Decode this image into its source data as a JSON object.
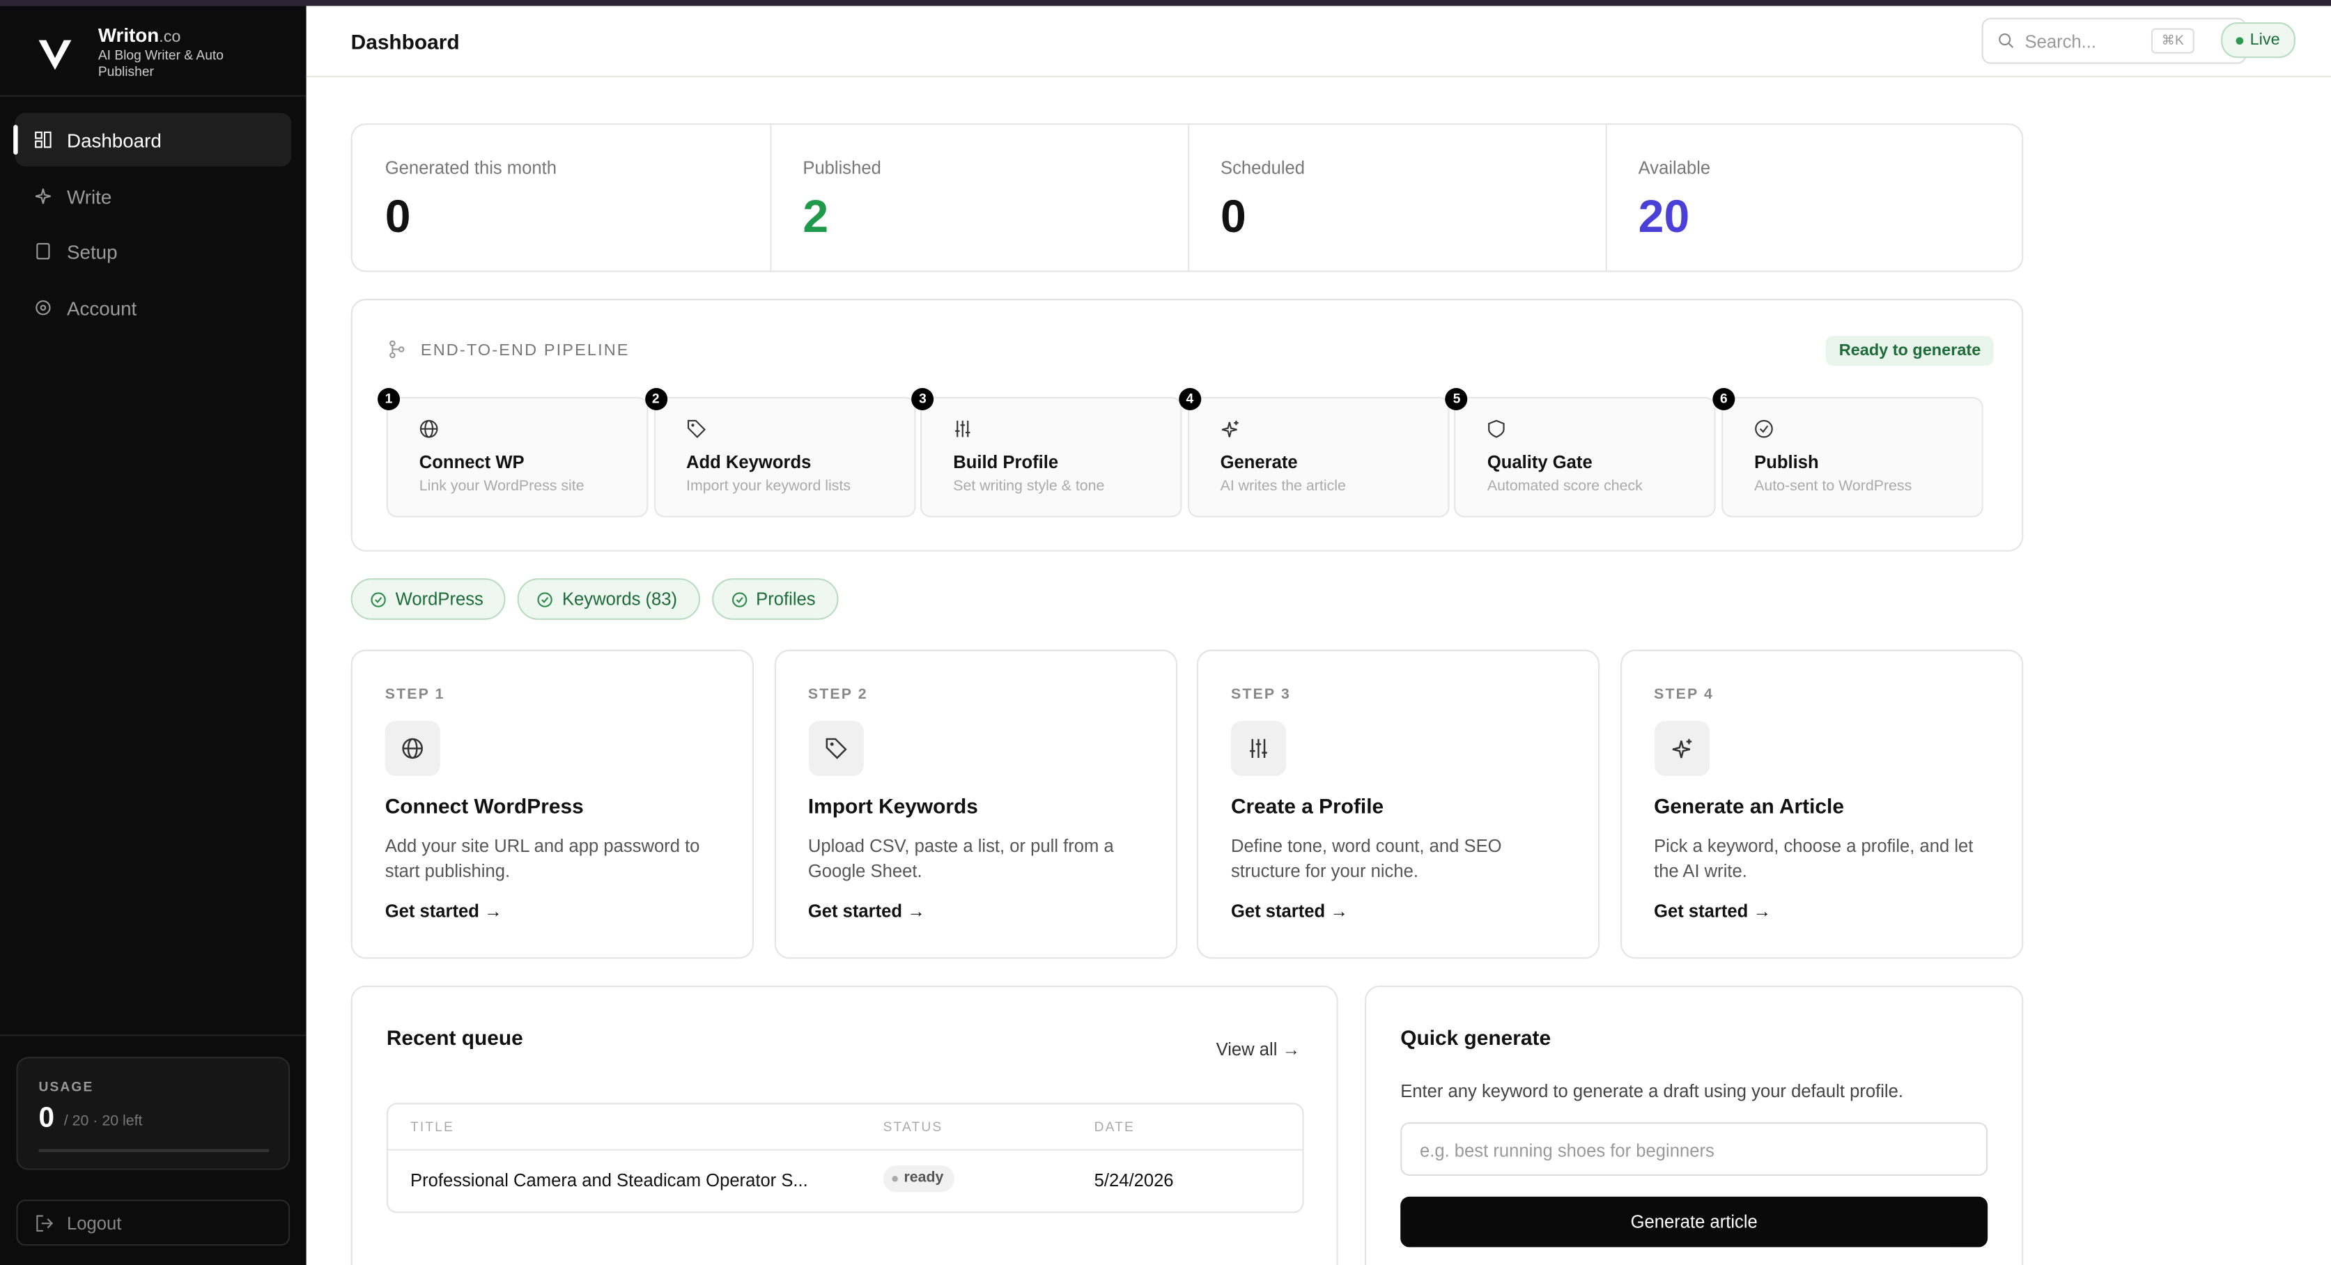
{
  "brand": {
    "name": "Writon",
    "suffix": ".co",
    "tagline": "AI Blog Writer & Auto Publisher"
  },
  "nav": [
    "Dashboard",
    "Write",
    "Setup",
    "Account"
  ],
  "usage": {
    "label": "USAGE",
    "used": 0,
    "limit": "/ 20",
    "left": "· 20 left"
  },
  "logout": "Logout",
  "header": {
    "title": "Dashboard",
    "search": "Search...",
    "shortcut": "⌘K",
    "status": "Live"
  },
  "stats": [
    {
      "label": "Generated this month",
      "value": 0
    },
    {
      "label": "Published",
      "value": 2
    },
    {
      "label": "Scheduled",
      "value": 0
    },
    {
      "label": "Available",
      "value": 20
    }
  ],
  "pipeline": {
    "title": "END-TO-END PIPELINE",
    "badge": "Ready to generate",
    "steps": [
      {
        "number": 1,
        "title": "Connect WP",
        "subtitle": "Link your WordPress site"
      },
      {
        "number": 2,
        "title": "Add Keywords",
        "subtitle": "Import your keyword lists"
      },
      {
        "number": 3,
        "title": "Build Profile",
        "subtitle": "Set writing style & tone"
      },
      {
        "number": 4,
        "title": "Generate",
        "subtitle": "AI writes the article"
      },
      {
        "number": 5,
        "title": "Quality Gate",
        "subtitle": "Automated score check"
      },
      {
        "number": 6,
        "title": "Publish",
        "subtitle": "Auto-sent to WordPress"
      }
    ]
  },
  "chips": [
    "WordPress",
    "Keywords (83)",
    "Profiles"
  ],
  "steps": [
    {
      "label": "STEP 1",
      "title": "Connect WordPress",
      "description": "Add your site URL and app password to start publishing.",
      "link": "Get started →"
    },
    {
      "label": "STEP 2",
      "title": "Import Keywords",
      "description": "Upload CSV, paste a list, or pull from a Google Sheet.",
      "link": "Get started →"
    },
    {
      "label": "STEP 3",
      "title": "Create a Profile",
      "description": "Define tone, word count, and SEO structure for your niche.",
      "link": "Get started →"
    },
    {
      "label": "STEP 4",
      "title": "Generate an Article",
      "description": "Pick a keyword, choose a profile, and let the AI write.",
      "link": "Get started →"
    }
  ],
  "queue": {
    "title": "Recent queue",
    "view_all": "View all →",
    "columns": [
      "TITLE",
      "STATUS",
      "DATE"
    ],
    "rows": [
      [
        "Professional Camera and Steadicam Operator S...",
        "ready",
        "5/24/2026"
      ]
    ]
  },
  "quick": {
    "title": "Quick generate",
    "description": "Enter any keyword to generate a draft using your default profile.",
    "placeholder": "e.g. best running shoes for beginners",
    "button": "Generate article"
  }
}
